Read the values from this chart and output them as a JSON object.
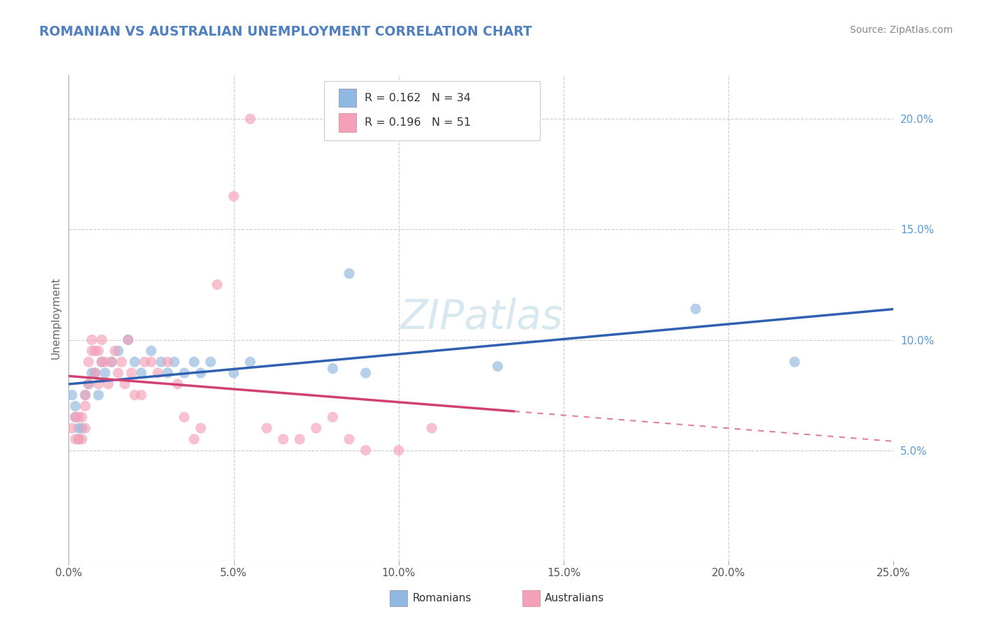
{
  "title": "ROMANIAN VS AUSTRALIAN UNEMPLOYMENT CORRELATION CHART",
  "source": "Source: ZipAtlas.com",
  "ylabel": "Unemployment",
  "xlim": [
    0.0,
    0.25
  ],
  "ylim": [
    0.0,
    0.22
  ],
  "xticks": [
    0.0,
    0.05,
    0.1,
    0.15,
    0.2,
    0.25
  ],
  "xtick_labels": [
    "0.0%",
    "5.0%",
    "10.0%",
    "15.0%",
    "20.0%",
    "25.0%"
  ],
  "yticks": [
    0.05,
    0.1,
    0.15,
    0.2
  ],
  "ytick_labels": [
    "5.0%",
    "10.0%",
    "15.0%",
    "20.0%"
  ],
  "romanian_color": "#90b8e0",
  "australian_color": "#f4a0b8",
  "trendline_romanian_color": "#3060b0",
  "trendline_australian_color": "#d04070",
  "trendline_aus_dashed_color": "#e08090",
  "legend_r_romanian": "0.162",
  "legend_n_romanian": "34",
  "legend_r_australian": "0.196",
  "legend_n_australian": "51",
  "romanians_x": [
    0.001,
    0.002,
    0.002,
    0.003,
    0.003,
    0.004,
    0.005,
    0.006,
    0.007,
    0.008,
    0.009,
    0.01,
    0.011,
    0.013,
    0.015,
    0.018,
    0.02,
    0.022,
    0.025,
    0.028,
    0.03,
    0.032,
    0.035,
    0.038,
    0.04,
    0.043,
    0.05,
    0.055,
    0.08,
    0.085,
    0.09,
    0.13,
    0.19,
    0.22
  ],
  "romanians_y": [
    0.075,
    0.07,
    0.065,
    0.06,
    0.055,
    0.06,
    0.075,
    0.08,
    0.085,
    0.085,
    0.075,
    0.09,
    0.085,
    0.09,
    0.095,
    0.1,
    0.09,
    0.085,
    0.095,
    0.09,
    0.085,
    0.09,
    0.085,
    0.09,
    0.085,
    0.09,
    0.085,
    0.09,
    0.087,
    0.13,
    0.085,
    0.088,
    0.114,
    0.09
  ],
  "australians_x": [
    0.001,
    0.002,
    0.002,
    0.003,
    0.003,
    0.004,
    0.004,
    0.005,
    0.005,
    0.005,
    0.006,
    0.006,
    0.007,
    0.007,
    0.008,
    0.008,
    0.009,
    0.009,
    0.01,
    0.01,
    0.011,
    0.012,
    0.013,
    0.014,
    0.015,
    0.016,
    0.017,
    0.018,
    0.019,
    0.02,
    0.022,
    0.023,
    0.025,
    0.027,
    0.03,
    0.033,
    0.035,
    0.038,
    0.04,
    0.045,
    0.05,
    0.055,
    0.06,
    0.065,
    0.07,
    0.075,
    0.08,
    0.085,
    0.09,
    0.1,
    0.11
  ],
  "australians_y": [
    0.06,
    0.055,
    0.065,
    0.055,
    0.065,
    0.055,
    0.065,
    0.06,
    0.07,
    0.075,
    0.08,
    0.09,
    0.095,
    0.1,
    0.085,
    0.095,
    0.08,
    0.095,
    0.09,
    0.1,
    0.09,
    0.08,
    0.09,
    0.095,
    0.085,
    0.09,
    0.08,
    0.1,
    0.085,
    0.075,
    0.075,
    0.09,
    0.09,
    0.085,
    0.09,
    0.08,
    0.065,
    0.055,
    0.06,
    0.125,
    0.165,
    0.2,
    0.06,
    0.055,
    0.055,
    0.06,
    0.065,
    0.055,
    0.05,
    0.05,
    0.06
  ]
}
